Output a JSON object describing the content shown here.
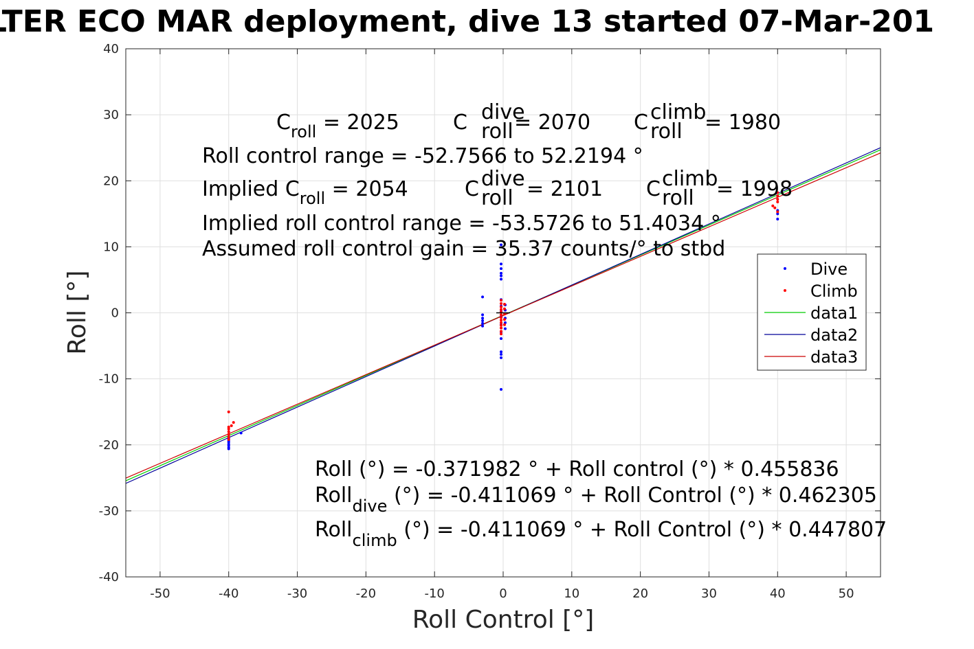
{
  "chart_data": {
    "type": "scatter",
    "title": "LTER ECO MAR deployment, dive 13 started 07-Mar-201",
    "xlabel": "Roll Control [°]",
    "ylabel": "Roll [°]",
    "xlim": [
      -55,
      55
    ],
    "ylim": [
      -40,
      40
    ],
    "xticks": [
      -50,
      -40,
      -30,
      -20,
      -10,
      0,
      10,
      20,
      30,
      40,
      50
    ],
    "yticks": [
      -40,
      -30,
      -20,
      -10,
      0,
      10,
      20,
      30,
      40
    ],
    "grid": true,
    "legend_position": "right",
    "series": [
      {
        "name": "Dive",
        "kind": "points",
        "color": "#0000ff",
        "points": [
          [
            -40,
            -18.8
          ],
          [
            -40,
            -19.2
          ],
          [
            -40,
            -19.6
          ],
          [
            -40,
            -19.9
          ],
          [
            -40,
            -20.1
          ],
          [
            -40,
            -20.4
          ],
          [
            -40,
            -20.6
          ],
          [
            -40,
            -19.0
          ],
          [
            -40,
            -19.4
          ],
          [
            -38.2,
            -18.2
          ],
          [
            -3,
            2.4
          ],
          [
            -3,
            -0.3
          ],
          [
            -3,
            -0.8
          ],
          [
            -3,
            -1.2
          ],
          [
            -3,
            -1.6
          ],
          [
            -3,
            -2.0
          ],
          [
            -0.3,
            10.3
          ],
          [
            -0.3,
            7.4
          ],
          [
            -0.3,
            6.7
          ],
          [
            -0.3,
            6.0
          ],
          [
            -0.3,
            5.6
          ],
          [
            -0.3,
            5.1
          ],
          [
            -0.3,
            2.0
          ],
          [
            -0.3,
            1.0
          ],
          [
            -0.3,
            0.2
          ],
          [
            -0.3,
            -0.6
          ],
          [
            -0.3,
            -1.8
          ],
          [
            -0.3,
            -2.9
          ],
          [
            -0.3,
            -3.9
          ],
          [
            -0.3,
            -5.9
          ],
          [
            -0.3,
            -6.3
          ],
          [
            -0.3,
            -6.8
          ],
          [
            -0.3,
            -11.6
          ],
          [
            0.3,
            1.2
          ],
          [
            0.3,
            0.4
          ],
          [
            0.3,
            -0.8
          ],
          [
            0.3,
            -1.5
          ],
          [
            0.3,
            -2.4
          ],
          [
            40,
            14.2
          ],
          [
            40,
            15.0
          ],
          [
            40,
            15.5
          ]
        ]
      },
      {
        "name": "Climb",
        "kind": "points",
        "color": "#ff0000",
        "points": [
          [
            -40,
            -15.0
          ],
          [
            -40,
            -17.3
          ],
          [
            -40,
            -17.6
          ],
          [
            -40,
            -18.0
          ],
          [
            -40,
            -18.4
          ],
          [
            -40,
            -18.8
          ],
          [
            -40,
            -19.2
          ],
          [
            -39.6,
            -17.1
          ],
          [
            -39.3,
            -16.6
          ],
          [
            -0.3,
            1.9
          ],
          [
            -0.3,
            1.4
          ],
          [
            -0.3,
            0.9
          ],
          [
            -0.3,
            0.5
          ],
          [
            -0.3,
            0.1
          ],
          [
            -0.3,
            -0.3
          ],
          [
            -0.3,
            -0.7
          ],
          [
            -0.3,
            -1.1
          ],
          [
            -0.3,
            -1.5
          ],
          [
            -0.3,
            -1.9
          ],
          [
            -0.3,
            -2.3
          ],
          [
            -0.3,
            -2.8
          ],
          [
            -0.3,
            -3.2
          ],
          [
            0.2,
            1.3
          ],
          [
            0.2,
            0.6
          ],
          [
            0.2,
            -0.2
          ],
          [
            0.2,
            -1.0
          ],
          [
            0.2,
            -1.8
          ],
          [
            39.3,
            16.2
          ],
          [
            39.6,
            15.9
          ],
          [
            40,
            16.8
          ],
          [
            40,
            17.2
          ],
          [
            40,
            17.7
          ],
          [
            40,
            18.2
          ],
          [
            40,
            15.3
          ]
        ]
      },
      {
        "name": "data1",
        "kind": "line",
        "color": "#00cc00",
        "intercept": -0.371982,
        "slope": 0.455836
      },
      {
        "name": "data2",
        "kind": "line",
        "color": "#000099",
        "intercept": -0.411069,
        "slope": 0.462305
      },
      {
        "name": "data3",
        "kind": "line",
        "color": "#cc0000",
        "intercept": -0.411069,
        "slope": 0.447807
      }
    ],
    "annotations": {
      "c_roll": "2025",
      "c_roll_dive": "2070",
      "c_roll_climb": "1980",
      "roll_control_range": "Roll control range = -52.7566 to 52.2194 °",
      "implied_c_roll": "2054",
      "implied_c_roll_dive": "2101",
      "implied_c_roll_climb": "1998",
      "implied_range": "Implied roll control range = -53.5726 to 51.4034 °",
      "gain": "Assumed roll control gain = 35.37 counts/° to stbd",
      "eq_all": "Roll (°) = -0.371982 ° + Roll control (°) * 0.455836",
      "eq_dive": "(°) = -0.411069 ° + Roll Control (°) * 0.462305",
      "eq_climb": "(°) = -0.411069 ° + Roll Control (°) * 0.447807"
    },
    "text": {
      "c": "C",
      "roll_sub": "roll",
      "dive_sup": "dive",
      "climb_sup": "climb",
      "eq_prefix": "= ",
      "implied_prefix": "Implied C",
      "roll_word": "Roll",
      "dive_sub": "dive",
      "climb_sub": "climb"
    }
  }
}
